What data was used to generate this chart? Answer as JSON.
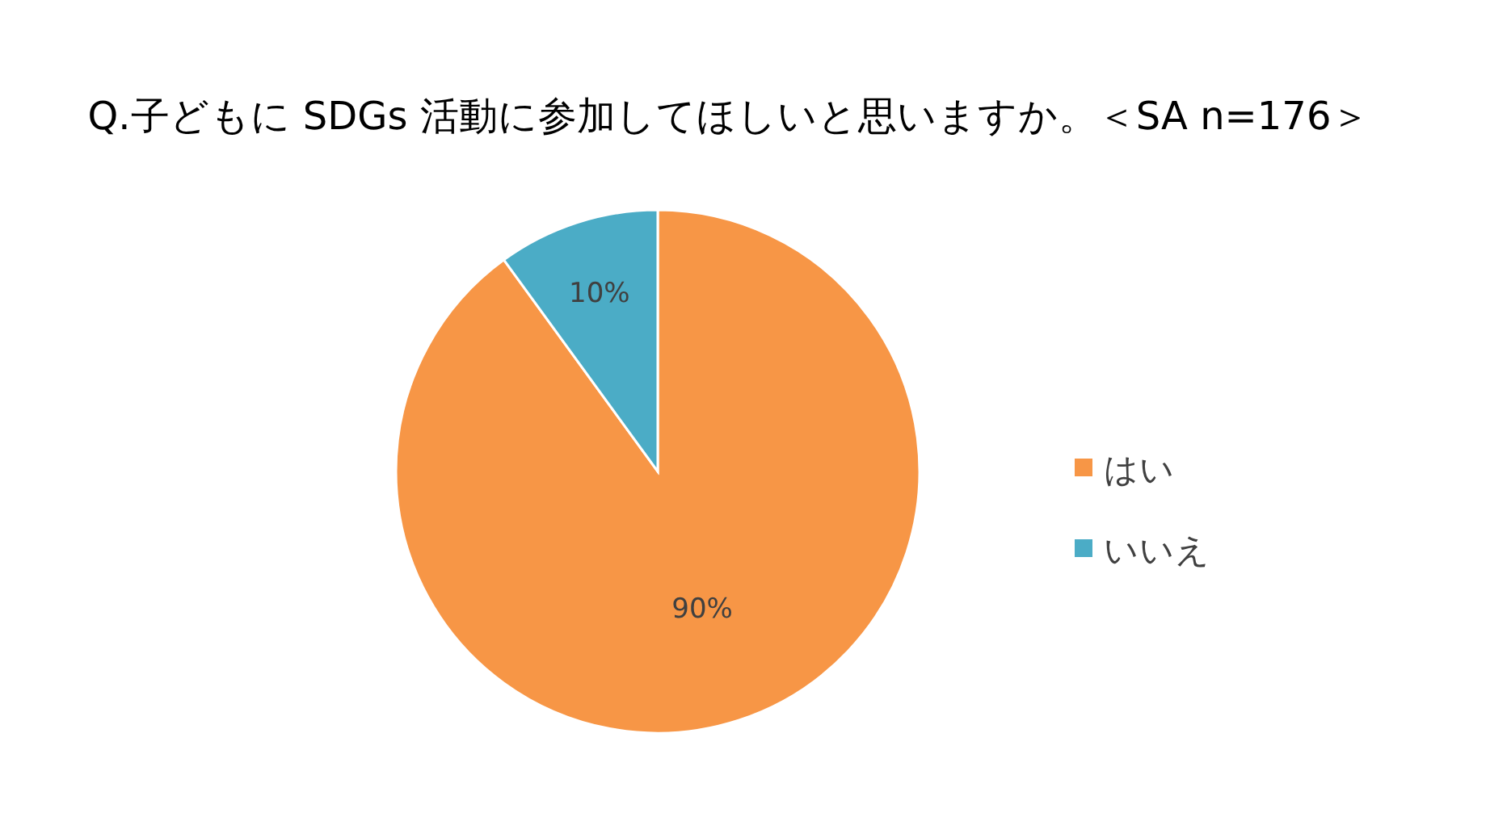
{
  "chart_data": {
    "type": "pie",
    "title": "Q.子どもに SDGs 活動に参加してほしいと思いますか。＜SA n=176＞",
    "categories": [
      "はい",
      "いいえ"
    ],
    "values": [
      90,
      10
    ],
    "colors": [
      "#f79646",
      "#4bacc6"
    ],
    "value_labels": [
      "90%",
      "10%"
    ],
    "legend": "right"
  }
}
